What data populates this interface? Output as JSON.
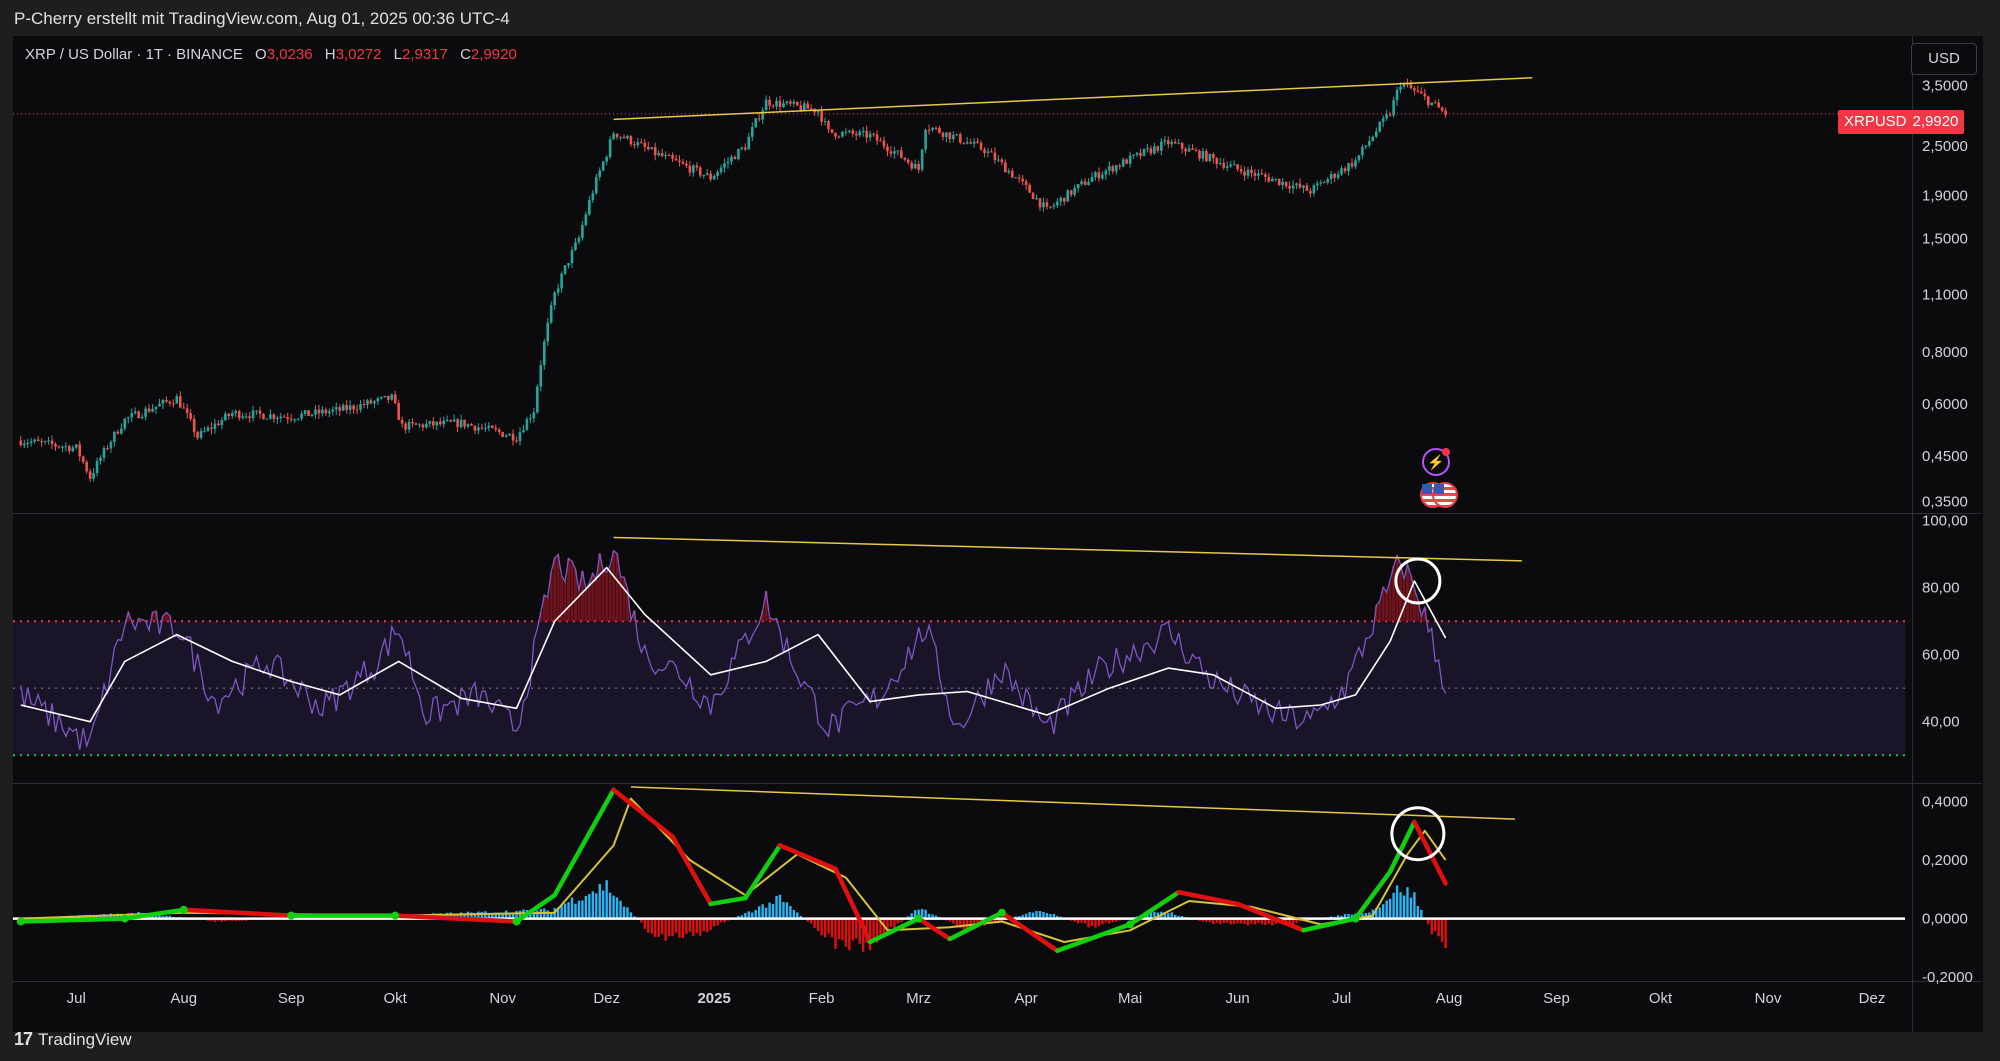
{
  "credit": "P-Cherry erstellt mit TradingView.com, Aug 01, 2025 00:36 UTC-4",
  "legend": {
    "symbol": "XRP / US Dollar · 1T · BINANCE",
    "open_label": "O",
    "open": "3,0236",
    "high_label": "H",
    "high": "3,0272",
    "low_label": "L",
    "low": "2,9317",
    "close_label": "C",
    "close": "2,9920"
  },
  "currency_button": "USD",
  "price_tag": {
    "symbol": "XRPUSD",
    "price": "2,9920"
  },
  "price_axis": {
    "labels": [
      "3,5000",
      "2,5000",
      "1,9000",
      "1,5000",
      "1,1000",
      "0,8000",
      "0,6000",
      "0,4500",
      "0,3500"
    ],
    "values": [
      3.5,
      2.5,
      1.9,
      1.5,
      1.1,
      0.8,
      0.6,
      0.45,
      0.35
    ],
    "scale": "log"
  },
  "rsi_axis": {
    "labels": [
      "100,00",
      "80,00",
      "60,00",
      "40,00"
    ],
    "values": [
      100,
      80,
      60,
      40
    ]
  },
  "macd_axis": {
    "labels": [
      "0,4000",
      "0,2000",
      "0,0000",
      "-0,2000"
    ],
    "values": [
      0.4,
      0.2,
      0,
      -0.2
    ]
  },
  "time_axis": [
    "Jul",
    "Aug",
    "Sep",
    "Okt",
    "Nov",
    "Dez",
    "2025",
    "Feb",
    "Mrz",
    "Apr",
    "Mai",
    "Jun",
    "Jul",
    "Aug",
    "Sep",
    "Okt",
    "Nov",
    "Dez"
  ],
  "colors": {
    "up": "#26a69a",
    "down": "#ef5350",
    "trendline": "#e6c84a",
    "rsi": "#7e57c2",
    "rsi_ma": "#ffffff",
    "overbought": "#f23645",
    "oversold": "#22c33a",
    "macd_up": "#11d011",
    "macd_down": "#e01010",
    "signal": "#d4c33a",
    "hist_pos": "#29b6f6",
    "hist_neg": "#e01010",
    "price_tag": "#f23645"
  },
  "event_icons": [
    "lightning-icon",
    "us-flag-icon"
  ],
  "footer_brand": "TradingView",
  "chart_data": [
    {
      "type": "candlestick",
      "title": "XRP / US Dollar · 1T · BINANCE",
      "scale": "log",
      "ylim": [
        0.33,
        4.6
      ],
      "x_range": [
        "2024-06-09",
        "2025-12-31"
      ],
      "series": [
        {
          "values": [
            [
              "2024-06-15",
              0.49
            ],
            [
              "2024-07-01",
              0.47
            ],
            [
              "2024-07-05",
              0.4
            ],
            [
              "2024-07-15",
              0.55
            ],
            [
              "2024-07-30",
              0.62
            ],
            [
              "2024-08-05",
              0.5
            ],
            [
              "2024-08-15",
              0.57
            ],
            [
              "2024-09-01",
              0.56
            ],
            [
              "2024-09-15",
              0.58
            ],
            [
              "2024-09-30",
              0.62
            ],
            [
              "2024-10-03",
              0.53
            ],
            [
              "2024-10-20",
              0.54
            ],
            [
              "2024-11-05",
              0.5
            ],
            [
              "2024-11-10",
              0.58
            ],
            [
              "2024-11-16",
              1.1
            ],
            [
              "2024-11-23",
              1.5
            ],
            [
              "2024-12-01",
              2.4
            ],
            [
              "2024-12-03",
              2.7
            ],
            [
              "2024-12-15",
              2.4
            ],
            [
              "2024-12-31",
              2.1
            ],
            [
              "2025-01-10",
              2.5
            ],
            [
              "2025-01-16",
              3.2
            ],
            [
              "2025-01-31",
              3.05
            ],
            [
              "2025-02-03",
              2.7
            ],
            [
              "2025-02-15",
              2.65
            ],
            [
              "2025-03-01",
              2.2
            ],
            [
              "2025-03-03",
              2.8
            ],
            [
              "2025-03-20",
              2.45
            ],
            [
              "2025-04-07",
              1.75
            ],
            [
              "2025-04-20",
              2.1
            ],
            [
              "2025-05-12",
              2.55
            ],
            [
              "2025-06-01",
              2.2
            ],
            [
              "2025-06-22",
              1.95
            ],
            [
              "2025-07-05",
              2.3
            ],
            [
              "2025-07-15",
              3.0
            ],
            [
              "2025-07-18",
              3.55
            ],
            [
              "2025-07-23",
              3.35
            ],
            [
              "2025-07-31",
              2.99
            ]
          ]
        }
      ],
      "trendline": [
        [
          "2024-12-03",
          2.9
        ],
        [
          "2025-08-25",
          3.65
        ]
      ]
    },
    {
      "type": "line",
      "title": "RSI",
      "ylim": [
        22,
        102
      ],
      "levels": [
        70,
        50,
        30
      ],
      "series": [
        {
          "values": [
            [
              "2024-06-15",
              48
            ],
            [
              "2024-07-05",
              33
            ],
            [
              "2024-07-15",
              70
            ],
            [
              "2024-07-31",
              68
            ],
            [
              "2024-08-10",
              46
            ],
            [
              "2024-08-25",
              58
            ],
            [
              "2024-09-10",
              44
            ],
            [
              "2024-09-25",
              57
            ],
            [
              "2024-10-02",
              68
            ],
            [
              "2024-10-10",
              42
            ],
            [
              "2024-10-25",
              48
            ],
            [
              "2024-11-05",
              38
            ],
            [
              "2024-11-10",
              60
            ],
            [
              "2024-11-16",
              88
            ],
            [
              "2024-11-25",
              80
            ],
            [
              "2024-12-03",
              92
            ],
            [
              "2024-12-12",
              60
            ],
            [
              "2024-12-22",
              55
            ],
            [
              "2024-12-31",
              45
            ],
            [
              "2025-01-16",
              76
            ],
            [
              "2025-01-25",
              55
            ],
            [
              "2025-02-03",
              38
            ],
            [
              "2025-02-18",
              48
            ],
            [
              "2025-03-03",
              68
            ],
            [
              "2025-03-12",
              38
            ],
            [
              "2025-03-25",
              56
            ],
            [
              "2025-04-07",
              38
            ],
            [
              "2025-04-22",
              55
            ],
            [
              "2025-05-12",
              67
            ],
            [
              "2025-05-25",
              52
            ],
            [
              "2025-06-12",
              42
            ],
            [
              "2025-06-22",
              40
            ],
            [
              "2025-07-02",
              50
            ],
            [
              "2025-07-12",
              74
            ],
            [
              "2025-07-18",
              88
            ],
            [
              "2025-07-23",
              78
            ],
            [
              "2025-07-31",
              51
            ]
          ]
        },
        {
          "values": [
            [
              "2024-06-15",
              45
            ],
            [
              "2024-07-05",
              40
            ],
            [
              "2024-07-15",
              58
            ],
            [
              "2024-07-30",
              66
            ],
            [
              "2024-08-15",
              58
            ],
            [
              "2024-09-01",
              52
            ],
            [
              "2024-09-15",
              48
            ],
            [
              "2024-10-02",
              58
            ],
            [
              "2024-10-20",
              47
            ],
            [
              "2024-11-05",
              44
            ],
            [
              "2024-11-16",
              70
            ],
            [
              "2024-12-01",
              86
            ],
            [
              "2024-12-12",
              72
            ],
            [
              "2024-12-31",
              54
            ],
            [
              "2025-01-16",
              58
            ],
            [
              "2025-01-31",
              66
            ],
            [
              "2025-02-15",
              46
            ],
            [
              "2025-03-01",
              48
            ],
            [
              "2025-03-15",
              49
            ],
            [
              "2025-04-07",
              42
            ],
            [
              "2025-04-25",
              50
            ],
            [
              "2025-05-12",
              56
            ],
            [
              "2025-05-25",
              54
            ],
            [
              "2025-06-12",
              44
            ],
            [
              "2025-06-25",
              45
            ],
            [
              "2025-07-05",
              48
            ],
            [
              "2025-07-15",
              64
            ],
            [
              "2025-07-22",
              82
            ],
            [
              "2025-07-31",
              65
            ]
          ]
        }
      ],
      "trendline": [
        [
          "2024-12-03",
          95
        ],
        [
          "2025-08-22",
          88
        ]
      ]
    },
    {
      "type": "line",
      "title": "MACD",
      "ylim": [
        -0.21,
        0.46
      ],
      "series": [
        {
          "values": [
            [
              "2024-06-15",
              -0.01
            ],
            [
              "2024-07-15",
              0.0
            ],
            [
              "2024-08-01",
              0.03
            ],
            [
              "2024-09-01",
              0.01
            ],
            [
              "2024-10-01",
              0.01
            ],
            [
              "2024-11-05",
              -0.01
            ],
            [
              "2024-11-16",
              0.08
            ],
            [
              "2024-12-03",
              0.44
            ],
            [
              "2024-12-20",
              0.28
            ],
            [
              "2024-12-31",
              0.05
            ],
            [
              "2025-01-10",
              0.07
            ],
            [
              "2025-01-20",
              0.25
            ],
            [
              "2025-02-05",
              0.17
            ],
            [
              "2025-02-15",
              -0.08
            ],
            [
              "2025-03-01",
              0.0
            ],
            [
              "2025-03-10",
              -0.07
            ],
            [
              "2025-03-25",
              0.02
            ],
            [
              "2025-04-10",
              -0.11
            ],
            [
              "2025-05-01",
              -0.02
            ],
            [
              "2025-05-15",
              0.09
            ],
            [
              "2025-06-01",
              0.05
            ],
            [
              "2025-06-20",
              -0.04
            ],
            [
              "2025-07-05",
              0.0
            ],
            [
              "2025-07-15",
              0.16
            ],
            [
              "2025-07-22",
              0.33
            ],
            [
              "2025-07-31",
              0.12
            ]
          ]
        },
        {
          "values": [
            [
              "2024-06-15",
              0.0
            ],
            [
              "2024-08-01",
              0.02
            ],
            [
              "2024-10-01",
              0.01
            ],
            [
              "2024-11-16",
              0.02
            ],
            [
              "2024-12-03",
              0.25
            ],
            [
              "2024-12-08",
              0.41
            ],
            [
              "2024-12-25",
              0.2
            ],
            [
              "2025-01-10",
              0.08
            ],
            [
              "2025-01-25",
              0.22
            ],
            [
              "2025-02-08",
              0.14
            ],
            [
              "2025-02-20",
              -0.04
            ],
            [
              "2025-03-10",
              -0.03
            ],
            [
              "2025-03-25",
              -0.01
            ],
            [
              "2025-04-12",
              -0.08
            ],
            [
              "2025-05-01",
              -0.04
            ],
            [
              "2025-05-18",
              0.06
            ],
            [
              "2025-06-05",
              0.04
            ],
            [
              "2025-06-25",
              -0.02
            ],
            [
              "2025-07-10",
              0.01
            ],
            [
              "2025-07-20",
              0.22
            ],
            [
              "2025-07-25",
              0.3
            ],
            [
              "2025-07-31",
              0.2
            ]
          ]
        }
      ],
      "histogram": [
        [
          "2024-07-20",
          0.02
        ],
        [
          "2024-08-10",
          -0.01
        ],
        [
          "2024-11-15",
          0.03
        ],
        [
          "2024-11-25",
          0.09
        ],
        [
          "2024-12-01",
          0.12
        ],
        [
          "2024-12-08",
          0.02
        ],
        [
          "2024-12-15",
          -0.07
        ],
        [
          "2024-12-28",
          -0.05
        ],
        [
          "2025-01-14",
          0.04
        ],
        [
          "2025-01-20",
          0.07
        ],
        [
          "2025-02-05",
          -0.09
        ],
        [
          "2025-02-15",
          -0.1
        ],
        [
          "2025-03-01",
          0.04
        ],
        [
          "2025-03-15",
          -0.04
        ],
        [
          "2025-04-05",
          0.03
        ],
        [
          "2025-04-20",
          -0.03
        ],
        [
          "2025-05-10",
          0.03
        ],
        [
          "2025-05-25",
          -0.02
        ],
        [
          "2025-06-15",
          -0.02
        ],
        [
          "2025-07-10",
          0.03
        ],
        [
          "2025-07-18",
          0.11
        ],
        [
          "2025-07-22",
          0.08
        ],
        [
          "2025-07-27",
          -0.05
        ],
        [
          "2025-07-31",
          -0.09
        ]
      ],
      "trendline": [
        [
          "2024-12-08",
          0.45
        ],
        [
          "2025-08-20",
          0.34
        ]
      ]
    }
  ]
}
